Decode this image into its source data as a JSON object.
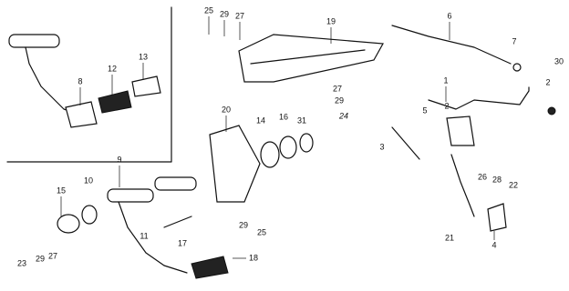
{
  "labels": [
    "25",
    "29",
    "27",
    "19",
    "6",
    "7",
    "30",
    "2",
    "1",
    "2",
    "5",
    "3",
    "8",
    "12",
    "13",
    "27",
    "29",
    "24",
    "20",
    "14",
    "16",
    "31",
    "9",
    "10",
    "15",
    "11",
    "17",
    "29",
    "25",
    "18",
    "23",
    "29",
    "27",
    "26",
    "28",
    "22",
    "21",
    "4"
  ]
}
